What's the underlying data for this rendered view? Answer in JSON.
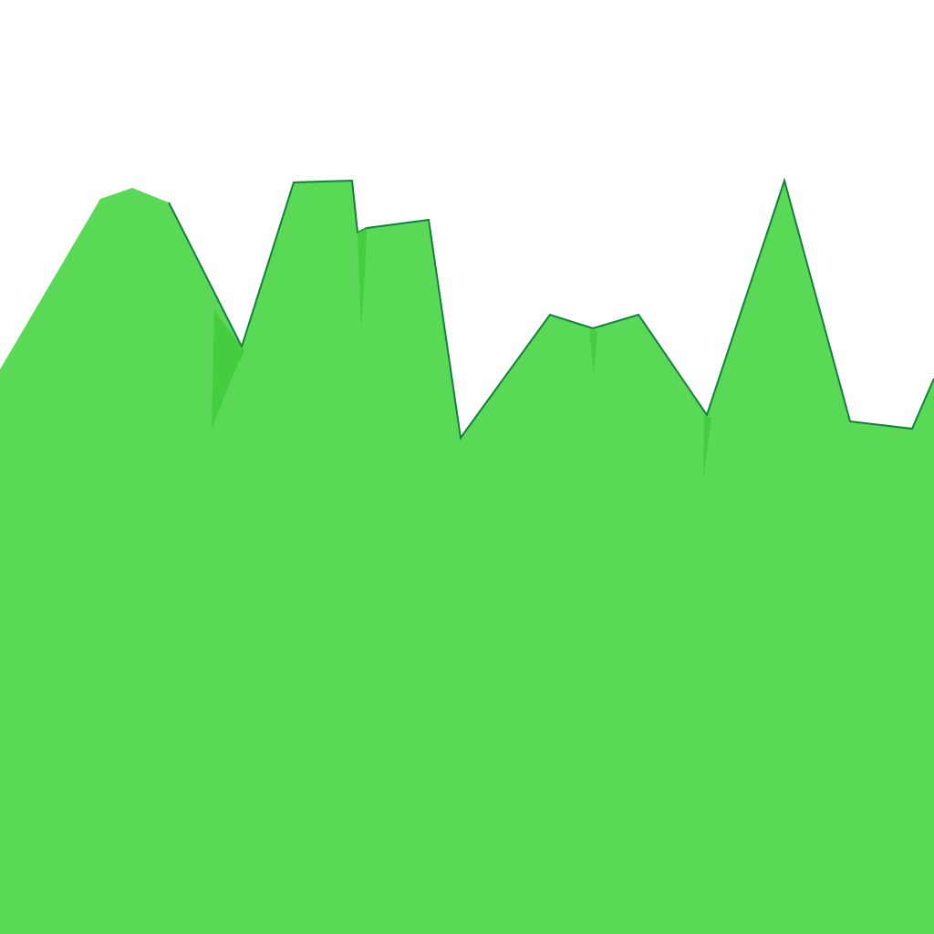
{
  "scene": {
    "sky_color": "#ffffff",
    "terrain_color": "#5ad957",
    "terrain_shadow_color": "#3dc93a",
    "ridge_line_color": "#13803a"
  }
}
